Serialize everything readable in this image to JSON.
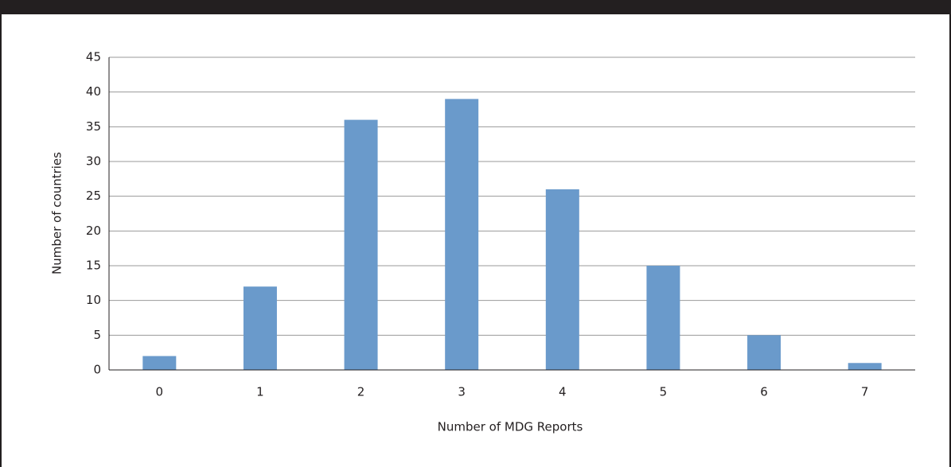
{
  "chart_data": {
    "type": "bar",
    "categories": [
      "0",
      "1",
      "2",
      "3",
      "4",
      "5",
      "6",
      "7"
    ],
    "values": [
      2,
      12,
      36,
      39,
      26,
      15,
      5,
      1
    ],
    "color": "#6a9acb",
    "xlabel": "Number of MDG Reports",
    "ylabel": "Number of countries",
    "ylim": [
      0,
      45
    ],
    "yticks": [
      0,
      5,
      10,
      15,
      20,
      25,
      30,
      35,
      40,
      45
    ],
    "grid": true
  }
}
